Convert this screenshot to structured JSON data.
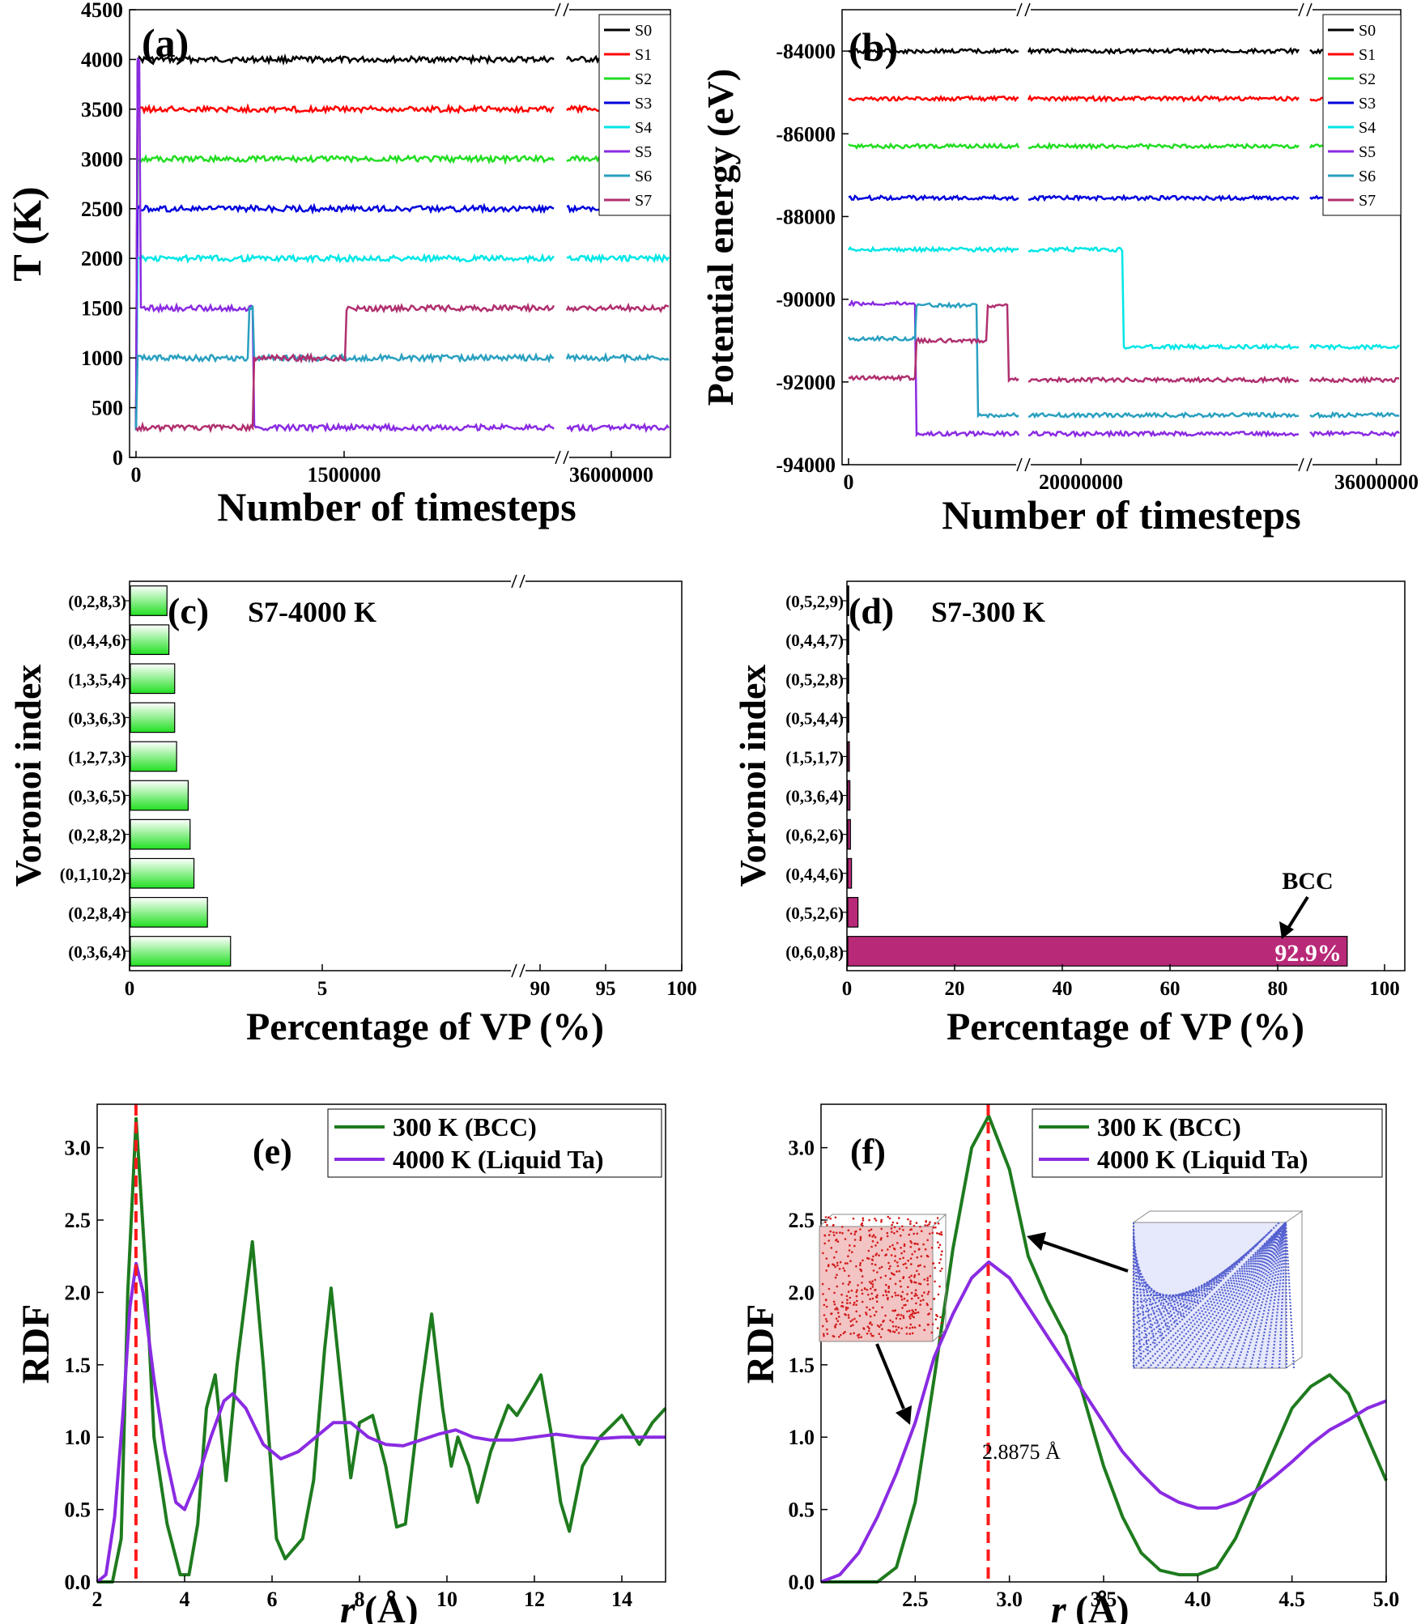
{
  "panel_a": {
    "label": "(a)",
    "chart_data": {
      "type": "line",
      "xlabel": "Number of timesteps",
      "ylabel": "T (K)",
      "ylim": [
        0,
        4500
      ],
      "yticks": [
        "0",
        "500",
        "1000",
        "1500",
        "2000",
        "2500",
        "3000",
        "3500",
        "4000",
        "4500"
      ],
      "xticks": [
        "0",
        "1500000",
        "36000000"
      ],
      "axis_break": "//",
      "series": [
        {
          "name": "S0",
          "color": "#000000",
          "steps": [
            [
              0,
              300
            ],
            [
              0.01,
              4000
            ]
          ]
        },
        {
          "name": "S1",
          "color": "#ff0000",
          "steps": [
            [
              0,
              300
            ],
            [
              0.01,
              3500
            ]
          ]
        },
        {
          "name": "S2",
          "color": "#22dd22",
          "steps": [
            [
              0,
              300
            ],
            [
              0.01,
              3000
            ]
          ]
        },
        {
          "name": "S3",
          "color": "#0000dd",
          "steps": [
            [
              0,
              300
            ],
            [
              0.01,
              2500
            ]
          ]
        },
        {
          "name": "S4",
          "color": "#00e6e6",
          "steps": [
            [
              0,
              300
            ],
            [
              0.01,
              2000
            ]
          ]
        },
        {
          "name": "S5",
          "color": "#8a2be2",
          "steps": [
            [
              0,
              300
            ],
            [
              0.01,
              4000
            ],
            [
              0.03,
              1500
            ],
            [
              0.73,
              300
            ]
          ]
        },
        {
          "name": "S6",
          "color": "#2aa0c0",
          "steps": [
            [
              0,
              300
            ],
            [
              0.01,
              1000
            ],
            [
              0.7,
              1500
            ],
            [
              0.73,
              1000
            ]
          ]
        },
        {
          "name": "S7",
          "color": "#b0306f",
          "steps": [
            [
              0,
              300
            ],
            [
              0.73,
              1000
            ],
            [
              1.3,
              1500
            ]
          ]
        }
      ]
    }
  },
  "panel_b": {
    "label": "(b)",
    "chart_data": {
      "type": "line",
      "xlabel": "Number of timesteps",
      "ylabel": "Potential energy (eV)",
      "ylim": [
        -94000,
        -83000
      ],
      "yticks": [
        "-94000",
        "-92000",
        "-90000",
        "-88000",
        "-86000",
        "-84000"
      ],
      "xticks": [
        "0",
        "20000000",
        "36000000"
      ],
      "axis_break": "//",
      "series": [
        {
          "name": "S0",
          "color": "#000000",
          "steps": [
            [
              0,
              -84000
            ]
          ]
        },
        {
          "name": "S1",
          "color": "#ff0000",
          "steps": [
            [
              0,
              -85150
            ]
          ]
        },
        {
          "name": "S2",
          "color": "#22dd22",
          "steps": [
            [
              0,
              -86300
            ]
          ]
        },
        {
          "name": "S3",
          "color": "#0000dd",
          "steps": [
            [
              0,
              -87550
            ]
          ]
        },
        {
          "name": "S4",
          "color": "#00e6e6",
          "steps": [
            [
              0,
              -88800
            ],
            [
              0.5,
              -91150
            ]
          ]
        },
        {
          "name": "S5",
          "color": "#8a2be2",
          "steps": [
            [
              0,
              -90100
            ],
            [
              0.13,
              -93250
            ]
          ]
        },
        {
          "name": "S6",
          "color": "#2aa0c0",
          "steps": [
            [
              0,
              -90950
            ],
            [
              0.13,
              -90150
            ],
            [
              0.25,
              -92800
            ]
          ]
        },
        {
          "name": "S7",
          "color": "#b0306f",
          "steps": [
            [
              0,
              -91900
            ],
            [
              0.13,
              -91000
            ],
            [
              0.27,
              -90150
            ],
            [
              0.31,
              -91950
            ]
          ]
        }
      ]
    }
  },
  "panel_c": {
    "label": "(c)",
    "annotation": "S7-4000 K",
    "chart_data": {
      "type": "bar",
      "orientation": "horizontal",
      "xlabel": "Percentage of VP (%)",
      "ylabel": "Voronoi index",
      "xticks": [
        "0",
        "5",
        "90",
        "95",
        "100"
      ],
      "axis_break": "//",
      "categories": [
        "(0,2,8,3)",
        "(0,4,4,6)",
        "(1,3,5,4)",
        "(0,3,6,3)",
        "(1,2,7,3)",
        "(0,3,6,5)",
        "(0,2,8,2)",
        "(0,1,10,2)",
        "(0,2,8,4)",
        "(0,3,6,4)"
      ],
      "values": [
        0.95,
        1.0,
        1.15,
        1.15,
        1.2,
        1.5,
        1.55,
        1.65,
        2.0,
        2.6
      ]
    }
  },
  "panel_d": {
    "label": "(d)",
    "annotation": "S7-300 K",
    "bar_label": "92.9%",
    "arrow_label": "BCC",
    "chart_data": {
      "type": "bar",
      "orientation": "horizontal",
      "xlabel": "Percentage of VP (%)",
      "ylabel": "Voronoi index",
      "xlim": [
        0,
        100
      ],
      "xticks": [
        "0",
        "20",
        "40",
        "60",
        "80",
        "100"
      ],
      "categories": [
        "(0,5,2,9)",
        "(0,4,4,7)",
        "(0,5,2,8)",
        "(0,5,4,4)",
        "(1,5,1,7)",
        "(0,3,6,4)",
        "(0,6,2,6)",
        "(0,4,4,6)",
        "(0,5,2,6)",
        "(0,6,0,8)"
      ],
      "values": [
        0.1,
        0.1,
        0.1,
        0.2,
        0.3,
        0.4,
        0.5,
        0.7,
        1.9,
        92.9
      ]
    }
  },
  "panel_e": {
    "label": "(e)",
    "chart_data": {
      "type": "line",
      "xlabel": "r (Å)",
      "xlabel_main": "r",
      "xlabel_unit": " (Å)",
      "ylabel": "RDF",
      "xlim": [
        2,
        15
      ],
      "ylim": [
        0,
        3.3
      ],
      "xticks": [
        "2",
        "4",
        "6",
        "8",
        "10",
        "12",
        "14"
      ],
      "yticks": [
        "0.0",
        "0.5",
        "1.0",
        "1.5",
        "2.0",
        "2.5",
        "3.0"
      ],
      "reference_line_x": 2.8875,
      "series": [
        {
          "name": "300 K (BCC)",
          "color": "#1e7b1e",
          "points": [
            [
              2.0,
              0
            ],
            [
              2.35,
              0
            ],
            [
              2.55,
              0.3
            ],
            [
              2.7,
              2.0
            ],
            [
              2.89,
              3.2
            ],
            [
              3.1,
              2.2
            ],
            [
              3.3,
              1.0
            ],
            [
              3.6,
              0.4
            ],
            [
              3.9,
              0.05
            ],
            [
              4.1,
              0.05
            ],
            [
              4.3,
              0.4
            ],
            [
              4.5,
              1.2
            ],
            [
              4.7,
              1.43
            ],
            [
              4.95,
              0.7
            ],
            [
              5.2,
              1.5
            ],
            [
              5.55,
              2.35
            ],
            [
              5.8,
              1.5
            ],
            [
              6.1,
              0.3
            ],
            [
              6.3,
              0.16
            ],
            [
              6.7,
              0.3
            ],
            [
              6.95,
              0.7
            ],
            [
              7.2,
              1.6
            ],
            [
              7.35,
              2.03
            ],
            [
              7.6,
              1.3
            ],
            [
              7.8,
              0.72
            ],
            [
              8.0,
              1.1
            ],
            [
              8.3,
              1.15
            ],
            [
              8.6,
              0.8
            ],
            [
              8.85,
              0.38
            ],
            [
              9.05,
              0.4
            ],
            [
              9.4,
              1.3
            ],
            [
              9.65,
              1.85
            ],
            [
              9.9,
              1.2
            ],
            [
              10.1,
              0.8
            ],
            [
              10.25,
              1.0
            ],
            [
              10.5,
              0.8
            ],
            [
              10.7,
              0.55
            ],
            [
              11.0,
              0.9
            ],
            [
              11.4,
              1.22
            ],
            [
              11.6,
              1.15
            ],
            [
              11.9,
              1.3
            ],
            [
              12.15,
              1.43
            ],
            [
              12.4,
              1.0
            ],
            [
              12.6,
              0.55
            ],
            [
              12.8,
              0.35
            ],
            [
              13.1,
              0.8
            ],
            [
              13.5,
              1.0
            ],
            [
              14.0,
              1.15
            ],
            [
              14.4,
              0.95
            ],
            [
              14.7,
              1.1
            ],
            [
              15.0,
              1.2
            ]
          ]
        },
        {
          "name": "4000 K (Liquid Ta)",
          "color": "#8a2be2",
          "points": [
            [
              2.0,
              0
            ],
            [
              2.2,
              0.05
            ],
            [
              2.4,
              0.45
            ],
            [
              2.6,
              1.2
            ],
            [
              2.75,
              1.9
            ],
            [
              2.89,
              2.2
            ],
            [
              3.05,
              2.0
            ],
            [
              3.3,
              1.4
            ],
            [
              3.55,
              0.9
            ],
            [
              3.8,
              0.55
            ],
            [
              4.0,
              0.5
            ],
            [
              4.3,
              0.72
            ],
            [
              4.6,
              1.0
            ],
            [
              4.9,
              1.25
            ],
            [
              5.1,
              1.3
            ],
            [
              5.4,
              1.2
            ],
            [
              5.8,
              0.95
            ],
            [
              6.2,
              0.85
            ],
            [
              6.6,
              0.9
            ],
            [
              7.0,
              1.0
            ],
            [
              7.4,
              1.1
            ],
            [
              7.8,
              1.1
            ],
            [
              8.2,
              1.0
            ],
            [
              8.6,
              0.95
            ],
            [
              9.0,
              0.94
            ],
            [
              9.4,
              0.98
            ],
            [
              9.8,
              1.02
            ],
            [
              10.2,
              1.05
            ],
            [
              10.6,
              1.0
            ],
            [
              11.0,
              0.98
            ],
            [
              11.5,
              0.98
            ],
            [
              12.0,
              1.0
            ],
            [
              12.5,
              1.02
            ],
            [
              13.0,
              1.0
            ],
            [
              13.5,
              0.99
            ],
            [
              14.0,
              1.0
            ],
            [
              14.5,
              1.0
            ],
            [
              15.0,
              1.0
            ]
          ]
        }
      ]
    }
  },
  "panel_f": {
    "label": "(f)",
    "annotation": "2.8875 Å",
    "chart_data": {
      "type": "line",
      "xlabel": "r (Å)",
      "xlabel_main": "r",
      "xlabel_unit": " (Å)",
      "ylabel": "RDF",
      "xlim": [
        2.0,
        5.0
      ],
      "ylim": [
        0,
        3.3
      ],
      "xticks": [
        "2.5",
        "3.0",
        "3.5",
        "4.0",
        "4.5",
        "5.0"
      ],
      "yticks": [
        "0.0",
        "0.5",
        "1.0",
        "1.5",
        "2.0",
        "2.5",
        "3.0"
      ],
      "reference_line_x": 2.8875,
      "series": [
        {
          "name": "300 K (BCC)",
          "color": "#1e7b1e",
          "points": [
            [
              2.0,
              0
            ],
            [
              2.3,
              0
            ],
            [
              2.4,
              0.1
            ],
            [
              2.5,
              0.55
            ],
            [
              2.6,
              1.4
            ],
            [
              2.7,
              2.3
            ],
            [
              2.8,
              3.0
            ],
            [
              2.89,
              3.22
            ],
            [
              3.0,
              2.85
            ],
            [
              3.1,
              2.25
            ],
            [
              3.2,
              1.95
            ],
            [
              3.3,
              1.7
            ],
            [
              3.4,
              1.25
            ],
            [
              3.5,
              0.8
            ],
            [
              3.6,
              0.45
            ],
            [
              3.7,
              0.2
            ],
            [
              3.8,
              0.08
            ],
            [
              3.9,
              0.05
            ],
            [
              4.0,
              0.05
            ],
            [
              4.1,
              0.1
            ],
            [
              4.2,
              0.3
            ],
            [
              4.3,
              0.6
            ],
            [
              4.4,
              0.9
            ],
            [
              4.5,
              1.2
            ],
            [
              4.6,
              1.35
            ],
            [
              4.7,
              1.43
            ],
            [
              4.8,
              1.3
            ],
            [
              4.9,
              1.0
            ],
            [
              5.0,
              0.7
            ]
          ]
        },
        {
          "name": "4000 K (Liquid Ta)",
          "color": "#8a2be2",
          "points": [
            [
              2.0,
              0
            ],
            [
              2.1,
              0.05
            ],
            [
              2.2,
              0.2
            ],
            [
              2.3,
              0.45
            ],
            [
              2.4,
              0.75
            ],
            [
              2.5,
              1.1
            ],
            [
              2.6,
              1.55
            ],
            [
              2.7,
              1.85
            ],
            [
              2.8,
              2.1
            ],
            [
              2.89,
              2.21
            ],
            [
              3.0,
              2.1
            ],
            [
              3.1,
              1.9
            ],
            [
              3.2,
              1.7
            ],
            [
              3.3,
              1.5
            ],
            [
              3.4,
              1.3
            ],
            [
              3.5,
              1.1
            ],
            [
              3.6,
              0.9
            ],
            [
              3.7,
              0.75
            ],
            [
              3.8,
              0.62
            ],
            [
              3.9,
              0.55
            ],
            [
              4.0,
              0.51
            ],
            [
              4.1,
              0.51
            ],
            [
              4.2,
              0.55
            ],
            [
              4.3,
              0.62
            ],
            [
              4.4,
              0.72
            ],
            [
              4.5,
              0.83
            ],
            [
              4.6,
              0.95
            ],
            [
              4.7,
              1.05
            ],
            [
              4.8,
              1.12
            ],
            [
              4.9,
              1.2
            ],
            [
              5.0,
              1.25
            ]
          ]
        }
      ]
    }
  }
}
